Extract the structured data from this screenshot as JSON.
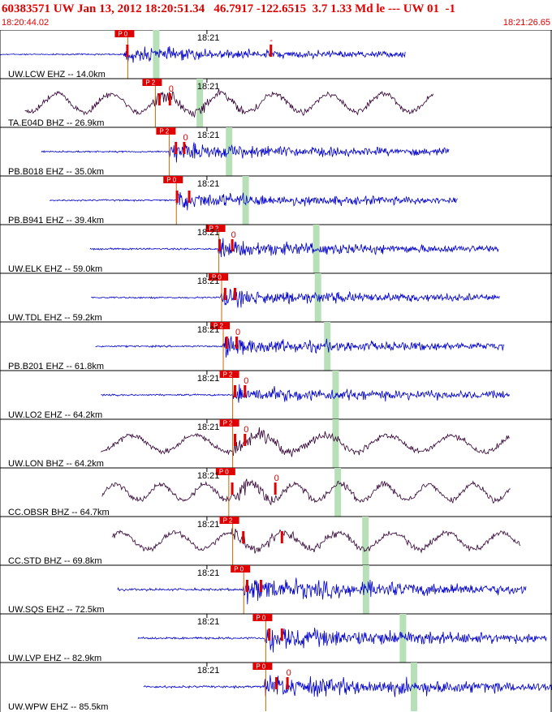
{
  "header": {
    "title": "60383571 UW Jan 13, 2012 18:20:51.34   46.7917 -122.6515  3.7 1.33 Md le --- UW 01  -1",
    "start_time": "18:20:44.02",
    "end_time": "18:21:26.65"
  },
  "colors": {
    "trace_blue": "#0000cc",
    "trace_purple": "#330033",
    "pick_red": "#e00000",
    "s_band_green": "#b8e0b8",
    "theoretical_line": "#cc6600",
    "grid": "#000000"
  },
  "chart_data": {
    "type": "line",
    "title": "",
    "x_axis": {
      "start": "18:20:44.02",
      "end": "18:21:26.65",
      "tick_label": "18:21",
      "tick_time": "18:21:00"
    },
    "traces": [
      {
        "label": "UW.LCW EHZ -- 14.0km",
        "station": "LCW",
        "net": "UW",
        "channel": "EHZ",
        "distance_km": 14.0,
        "color": "blue",
        "kind": "short",
        "start": 0.0,
        "end": 0.735,
        "p": 0.23,
        "pick": "P 0",
        "marks": [
          {
            "t": 0.23,
            "text": ""
          },
          {
            "t": 0.49,
            "text": "-"
          }
        ],
        "s": 0.283,
        "amp": 0.5
      },
      {
        "label": "TA.E04D BHZ -- 26.9km",
        "station": "E04D",
        "net": "TA",
        "channel": "BHZ",
        "distance_km": 26.9,
        "color": "purple",
        "kind": "long",
        "start": 0.045,
        "end": 0.785,
        "p": 0.28,
        "pick": "P 2",
        "marks": [
          {
            "t": 0.288,
            "text": ""
          },
          {
            "t": 0.307,
            "text": "0"
          }
        ],
        "s": 0.362,
        "amp": 0.8
      },
      {
        "label": "PB.B018 EHZ -- 35.0km",
        "station": "B018",
        "net": "PB",
        "channel": "EHZ",
        "distance_km": 35.0,
        "color": "blue",
        "kind": "short",
        "start": 0.075,
        "end": 0.815,
        "p": 0.305,
        "pick": "P 2",
        "marks": [
          {
            "t": 0.318,
            "text": ""
          },
          {
            "t": 0.333,
            "text": "0"
          }
        ],
        "s": 0.415,
        "amp": 0.6
      },
      {
        "label": "PB.B941 EHZ -- 39.4km",
        "station": "B941",
        "net": "PB",
        "channel": "EHZ",
        "distance_km": 39.4,
        "color": "blue",
        "kind": "short",
        "start": 0.09,
        "end": 0.83,
        "p": 0.318,
        "pick": "P 0",
        "marks": [
          {
            "t": 0.32,
            "text": ""
          },
          {
            "t": 0.342,
            "text": ""
          }
        ],
        "s": 0.445,
        "amp": 0.6
      },
      {
        "label": "UW.ELK EHZ -- 59.0km",
        "station": "ELK",
        "net": "UW",
        "channel": "EHZ",
        "distance_km": 59.0,
        "color": "blue",
        "kind": "short",
        "start": 0.163,
        "end": 0.903,
        "p": 0.395,
        "pick": "P 2",
        "marks": [
          {
            "t": 0.397,
            "text": ""
          },
          {
            "t": 0.42,
            "text": "0"
          }
        ],
        "s": 0.573,
        "amp": 0.6
      },
      {
        "label": "UW.TDL EHZ -- 59.2km",
        "station": "TDL",
        "net": "UW",
        "channel": "EHZ",
        "distance_km": 59.2,
        "color": "blue",
        "kind": "short",
        "start": 0.165,
        "end": 0.905,
        "p": 0.4,
        "pick": "P 0",
        "marks": [
          {
            "t": 0.407,
            "text": ""
          },
          {
            "t": 0.425,
            "text": ""
          }
        ],
        "s": 0.576,
        "amp": 0.6
      },
      {
        "label": "PB.B201 EHZ -- 61.8km",
        "station": "B201",
        "net": "PB",
        "channel": "EHZ",
        "distance_km": 61.8,
        "color": "blue",
        "kind": "short",
        "start": 0.173,
        "end": 0.913,
        "p": 0.403,
        "pick": "P 2",
        "marks": [
          {
            "t": 0.41,
            "text": ""
          },
          {
            "t": 0.428,
            "text": "0"
          }
        ],
        "s": 0.593,
        "amp": 0.6
      },
      {
        "label": "UW.LO2 EHZ -- 64.2km",
        "station": "LO2",
        "net": "UW",
        "channel": "EHZ",
        "distance_km": 64.2,
        "color": "blue",
        "kind": "short",
        "start": 0.183,
        "end": 0.923,
        "p": 0.42,
        "pick": "P 2",
        "marks": [
          {
            "t": 0.425,
            "text": ""
          },
          {
            "t": 0.443,
            "text": "0"
          }
        ],
        "s": 0.608,
        "amp": 0.6
      },
      {
        "label": "UW.LON BHZ -- 64.2km",
        "station": "LON",
        "net": "UW",
        "channel": "BHZ",
        "distance_km": 64.2,
        "color": "purple",
        "kind": "long",
        "start": 0.183,
        "end": 0.923,
        "p": 0.42,
        "pick": "P 2",
        "marks": [
          {
            "t": 0.425,
            "text": ""
          },
          {
            "t": 0.443,
            "text": "0"
          }
        ],
        "s": 0.608,
        "amp": 0.7
      },
      {
        "label": "CC.OBSR BHZ -- 64.7km",
        "station": "OBSR",
        "net": "CC",
        "channel": "BHZ",
        "distance_km": 64.7,
        "color": "purple",
        "kind": "long",
        "start": 0.185,
        "end": 0.925,
        "p": 0.413,
        "pick": "P 0",
        "marks": [
          {
            "t": 0.42,
            "text": ""
          },
          {
            "t": 0.498,
            "text": "0"
          }
        ],
        "s": 0.612,
        "amp": 0.7
      },
      {
        "label": "CC.STD BHZ -- 69.8km",
        "station": "STD",
        "net": "CC",
        "channel": "BHZ",
        "distance_km": 69.8,
        "color": "purple",
        "kind": "long",
        "start": 0.203,
        "end": 0.943,
        "p": 0.42,
        "pick": "P 2",
        "marks": [
          {
            "t": 0.44,
            "text": ""
          },
          {
            "t": 0.51,
            "text": ""
          }
        ],
        "s": 0.662,
        "amp": 0.7
      },
      {
        "label": "UW.SQS EHZ -- 72.5km",
        "station": "SQS",
        "net": "UW",
        "channel": "EHZ",
        "distance_km": 72.5,
        "color": "blue",
        "kind": "short",
        "start": 0.213,
        "end": 0.953,
        "p": 0.44,
        "pick": "P 0",
        "marks": [
          {
            "t": 0.447,
            "text": ""
          },
          {
            "t": 0.472,
            "text": ""
          }
        ],
        "s": 0.663,
        "amp": 0.85
      },
      {
        "label": "UW.LVP EHZ -- 82.9km",
        "station": "LVP",
        "net": "UW",
        "channel": "EHZ",
        "distance_km": 82.9,
        "color": "blue",
        "kind": "short",
        "start": 0.25,
        "end": 0.99,
        "p": 0.48,
        "pick": "P 0",
        "marks": [
          {
            "t": 0.487,
            "text": ""
          },
          {
            "t": 0.51,
            "text": ""
          }
        ],
        "s": 0.73,
        "amp": 0.8
      },
      {
        "label": "UW.WPW EHZ -- 85.5km",
        "station": "WPW",
        "net": "UW",
        "channel": "EHZ",
        "distance_km": 85.5,
        "color": "blue",
        "kind": "short",
        "start": 0.26,
        "end": 1.0,
        "p": 0.48,
        "pick": "P 0",
        "marks": [
          {
            "t": 0.5,
            "text": ""
          },
          {
            "t": 0.52,
            "text": "0"
          }
        ],
        "s": 0.75,
        "amp": 0.8
      }
    ]
  }
}
